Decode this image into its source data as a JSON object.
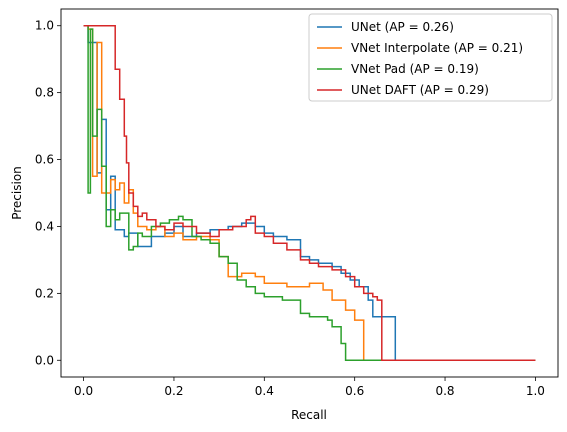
{
  "chart_data": {
    "type": "line",
    "step": "post",
    "xlabel": "Recall",
    "ylabel": "Precision",
    "xlim": [
      -0.05,
      1.05
    ],
    "ylim": [
      -0.05,
      1.05
    ],
    "xticks": [
      0.0,
      0.2,
      0.4,
      0.6,
      0.8,
      1.0
    ],
    "yticks": [
      0.0,
      0.2,
      0.4,
      0.6,
      0.8,
      1.0
    ],
    "xtick_labels": [
      "0.0",
      "0.2",
      "0.4",
      "0.6",
      "0.8",
      "1.0"
    ],
    "ytick_labels": [
      "0.0",
      "0.2",
      "0.4",
      "0.6",
      "0.8",
      "1.0"
    ],
    "grid": false,
    "legend_position": "top-right",
    "series": [
      {
        "name": "UNet (AP = 0.26)",
        "color": "#1f77b4",
        "x": [
          0.0,
          0.01,
          0.03,
          0.04,
          0.05,
          0.06,
          0.07,
          0.09,
          0.1,
          0.12,
          0.15,
          0.18,
          0.2,
          0.22,
          0.25,
          0.28,
          0.3,
          0.32,
          0.35,
          0.38,
          0.4,
          0.42,
          0.45,
          0.48,
          0.5,
          0.52,
          0.55,
          0.57,
          0.59,
          0.61,
          0.63,
          0.64,
          0.65,
          0.68,
          0.69,
          1.0
        ],
        "y": [
          1.0,
          0.95,
          0.56,
          0.72,
          0.45,
          0.55,
          0.39,
          0.37,
          0.38,
          0.34,
          0.37,
          0.38,
          0.4,
          0.37,
          0.38,
          0.39,
          0.39,
          0.4,
          0.41,
          0.4,
          0.38,
          0.37,
          0.36,
          0.31,
          0.3,
          0.29,
          0.28,
          0.26,
          0.24,
          0.22,
          0.18,
          0.13,
          0.13,
          0.13,
          0.0,
          0.0
        ]
      },
      {
        "name": "VNet Interpolate (AP = 0.21)",
        "color": "#ff7f0e",
        "x": [
          0.0,
          0.01,
          0.02,
          0.03,
          0.04,
          0.06,
          0.07,
          0.08,
          0.09,
          0.1,
          0.11,
          0.12,
          0.14,
          0.16,
          0.18,
          0.2,
          0.22,
          0.25,
          0.28,
          0.3,
          0.32,
          0.35,
          0.38,
          0.4,
          0.45,
          0.5,
          0.53,
          0.55,
          0.58,
          0.6,
          0.62,
          1.0
        ],
        "y": [
          1.0,
          0.99,
          0.55,
          0.95,
          0.5,
          0.54,
          0.51,
          0.53,
          0.47,
          0.51,
          0.44,
          0.4,
          0.39,
          0.4,
          0.37,
          0.38,
          0.36,
          0.37,
          0.36,
          0.31,
          0.25,
          0.26,
          0.25,
          0.23,
          0.22,
          0.23,
          0.21,
          0.18,
          0.15,
          0.12,
          0.0,
          0.0
        ]
      },
      {
        "name": "VNet Pad (AP = 0.19)",
        "color": "#2ca02c",
        "x": [
          0.0,
          0.01,
          0.015,
          0.02,
          0.03,
          0.04,
          0.05,
          0.06,
          0.07,
          0.08,
          0.1,
          0.11,
          0.12,
          0.13,
          0.15,
          0.17,
          0.19,
          0.21,
          0.22,
          0.24,
          0.26,
          0.28,
          0.3,
          0.32,
          0.34,
          0.36,
          0.38,
          0.4,
          0.44,
          0.48,
          0.5,
          0.52,
          0.54,
          0.55,
          0.57,
          0.58,
          1.0
        ],
        "y": [
          1.0,
          0.5,
          0.99,
          0.67,
          0.75,
          0.58,
          0.4,
          0.45,
          0.42,
          0.44,
          0.33,
          0.34,
          0.38,
          0.37,
          0.4,
          0.41,
          0.42,
          0.43,
          0.42,
          0.37,
          0.36,
          0.35,
          0.31,
          0.29,
          0.24,
          0.22,
          0.2,
          0.19,
          0.18,
          0.14,
          0.13,
          0.13,
          0.12,
          0.1,
          0.05,
          0.0,
          0.0
        ]
      },
      {
        "name": "UNet DAFT (AP = 0.29)",
        "color": "#d62728",
        "x": [
          0.0,
          0.07,
          0.08,
          0.09,
          0.095,
          0.1,
          0.11,
          0.12,
          0.13,
          0.14,
          0.16,
          0.18,
          0.2,
          0.22,
          0.25,
          0.28,
          0.3,
          0.33,
          0.36,
          0.37,
          0.38,
          0.4,
          0.42,
          0.45,
          0.48,
          0.5,
          0.52,
          0.55,
          0.58,
          0.6,
          0.62,
          0.64,
          0.65,
          0.66,
          1.0
        ],
        "y": [
          1.0,
          0.87,
          0.78,
          0.67,
          0.59,
          0.5,
          0.46,
          0.43,
          0.44,
          0.42,
          0.4,
          0.39,
          0.41,
          0.4,
          0.38,
          0.37,
          0.39,
          0.4,
          0.42,
          0.43,
          0.38,
          0.37,
          0.35,
          0.33,
          0.3,
          0.29,
          0.28,
          0.27,
          0.25,
          0.22,
          0.2,
          0.19,
          0.18,
          0.0,
          0.0
        ]
      }
    ]
  }
}
